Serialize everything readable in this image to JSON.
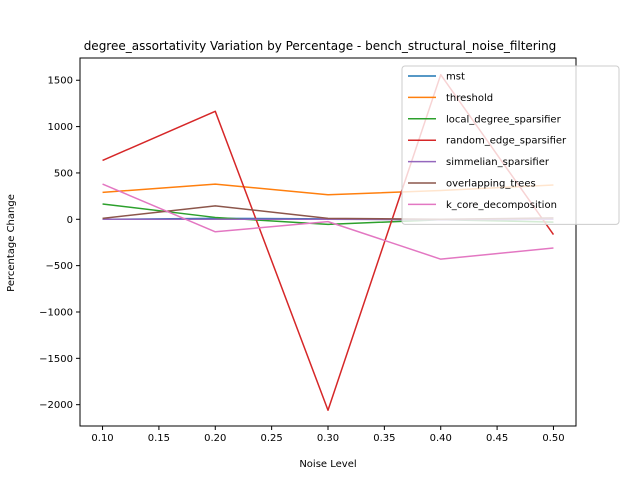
{
  "chart_data": {
    "type": "line",
    "title": "degree_assortativity Variation by Percentage - bench_structural_noise_filtering",
    "xlabel": "Noise Level",
    "ylabel": "Percentage Change",
    "x": [
      0.1,
      0.2,
      0.3,
      0.4,
      0.5
    ],
    "xlim": [
      0.08,
      0.52
    ],
    "ylim": [
      -2230,
      1740
    ],
    "xticks": [
      0.1,
      0.15,
      0.2,
      0.25,
      0.3,
      0.35,
      0.4,
      0.45,
      0.5
    ],
    "yticks": [
      -2000,
      -1500,
      -1000,
      -500,
      0,
      500,
      1000,
      1500
    ],
    "grid": false,
    "legend_position": "top-right",
    "series": [
      {
        "name": "mst",
        "color": "#1f77b4",
        "values": [
          0,
          10,
          5,
          -5,
          0
        ]
      },
      {
        "name": "threshold",
        "color": "#ff7f0e",
        "values": [
          290,
          380,
          265,
          310,
          370
        ]
      },
      {
        "name": "local_degree_sparsifier",
        "color": "#2ca02c",
        "values": [
          165,
          20,
          -55,
          -5,
          -30
        ]
      },
      {
        "name": "random_edge_sparsifier",
        "color": "#d62728",
        "values": [
          635,
          1165,
          -2060,
          1560,
          -165
        ]
      },
      {
        "name": "simmelian_sparsifier",
        "color": "#9467bd",
        "values": [
          0,
          0,
          0,
          -5,
          0
        ]
      },
      {
        "name": "overlapping_trees",
        "color": "#8c564b",
        "values": [
          10,
          145,
          10,
          0,
          15
        ]
      },
      {
        "name": "k_core_decomposition",
        "color": "#e377c2",
        "values": [
          380,
          -135,
          -25,
          -430,
          -310
        ]
      }
    ]
  }
}
